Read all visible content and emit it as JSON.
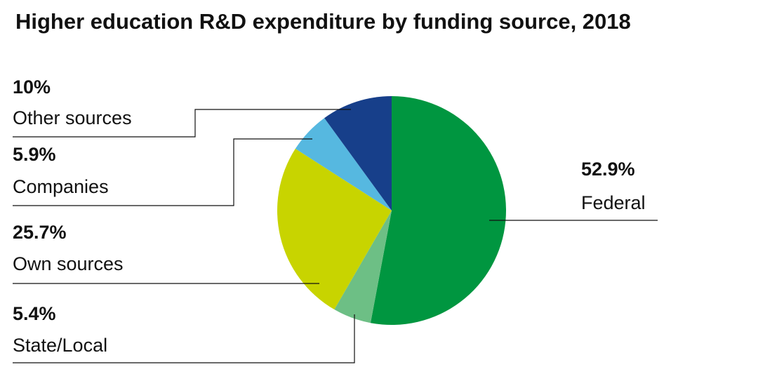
{
  "chart_data": {
    "type": "pie",
    "title": "Higher education R&D expenditure by funding source, 2018",
    "categories": [
      "Federal",
      "State/Local",
      "Own sources",
      "Companies",
      "Other sources"
    ],
    "values": [
      52.9,
      5.4,
      25.7,
      5.9,
      10
    ],
    "value_labels": [
      "52.9%",
      "5.4%",
      "25.7%",
      "5.9%",
      "10%"
    ],
    "colors": [
      "#009640",
      "#6dbf85",
      "#c8d400",
      "#56b8e0",
      "#173f8a"
    ]
  }
}
